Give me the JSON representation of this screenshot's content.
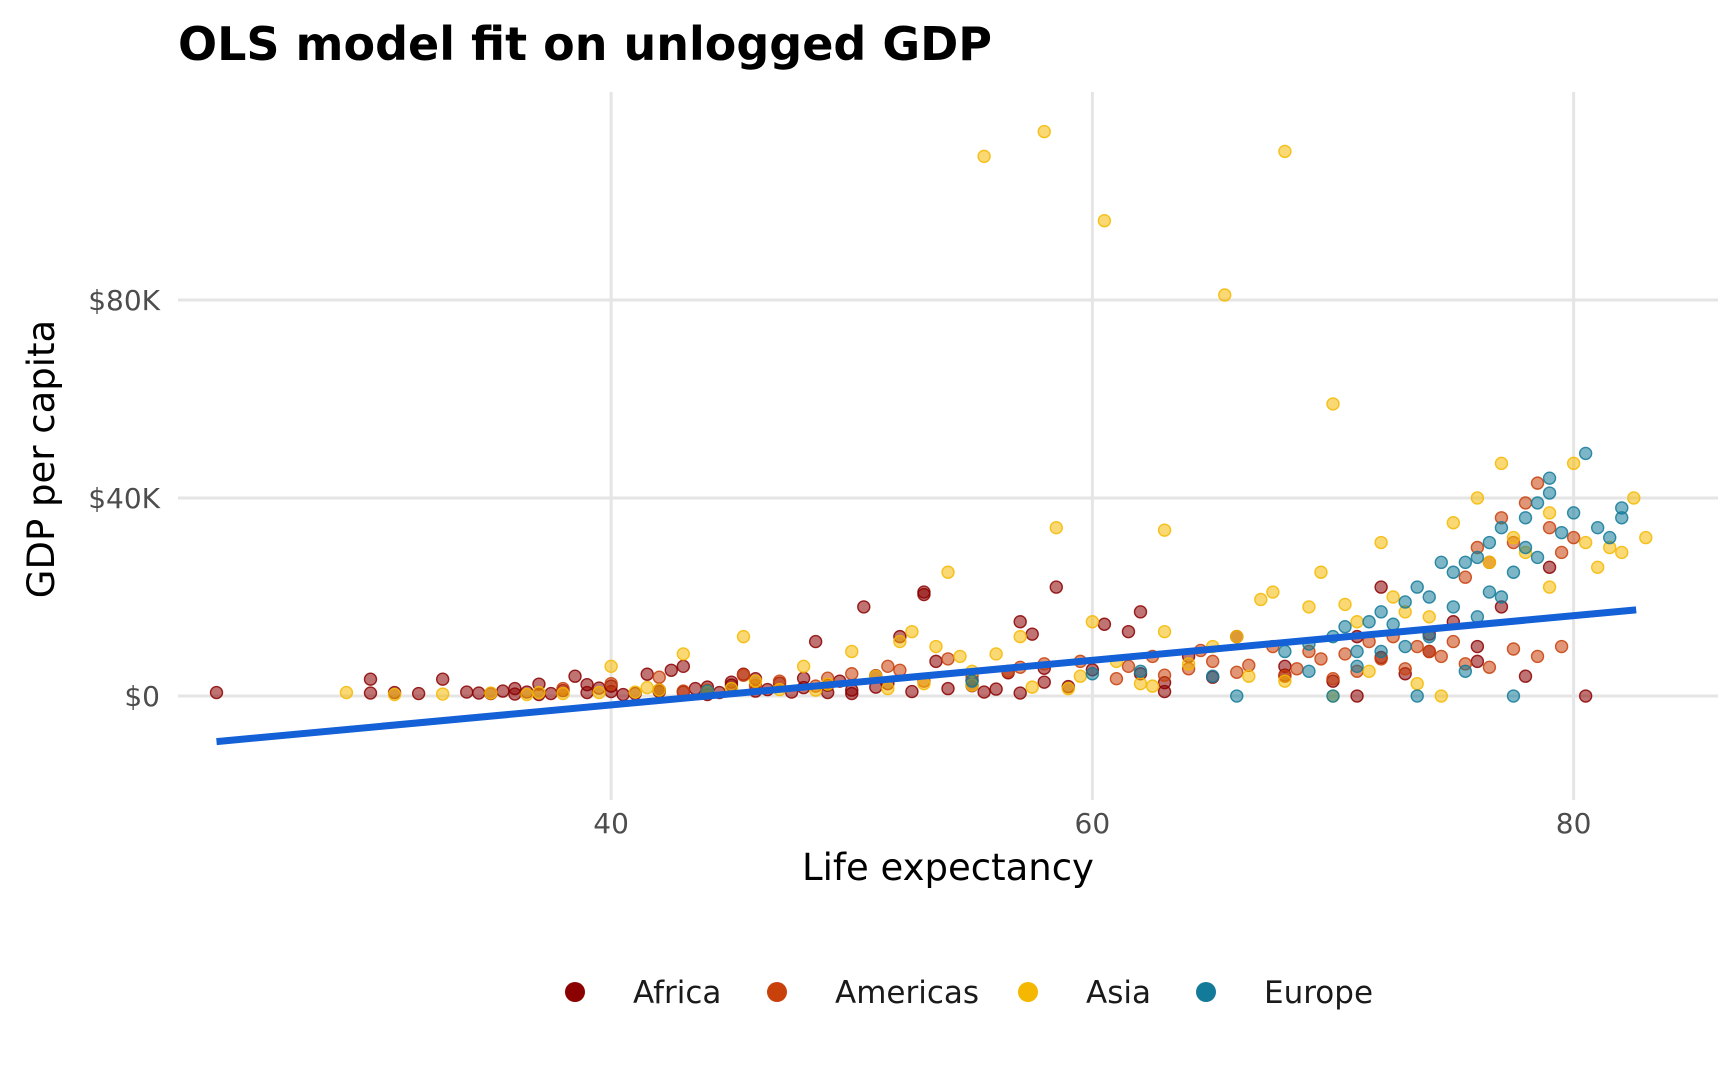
{
  "chart_data": {
    "type": "scatter",
    "title": "OLS model fit on unlogged GDP",
    "xlabel": "Life expectancy",
    "ylabel": "GDP per capita",
    "xlim": [
      22,
      86
    ],
    "ylim": [
      -21000,
      122000
    ],
    "x_ticks": [
      40,
      60,
      80
    ],
    "x_tick_labels": [
      "40",
      "60",
      "80"
    ],
    "y_ticks": [
      0,
      40000,
      80000
    ],
    "y_tick_labels": [
      "$0",
      "$40K",
      "$80K"
    ],
    "grid": true,
    "legend_position": "bottom",
    "legend": [
      "Africa",
      "Americas",
      "Asia",
      "Europe"
    ],
    "colors": {
      "Africa": "#8b0000",
      "Americas": "#c8400a",
      "Asia": "#f5b800",
      "Europe": "#137a99",
      "fit_line": "#1460d6"
    },
    "series": [
      {
        "name": "Africa",
        "points": [
          [
            23.6,
            700
          ],
          [
            30,
            600
          ],
          [
            30,
            3400
          ],
          [
            31,
            700
          ],
          [
            32,
            500
          ],
          [
            33,
            3400
          ],
          [
            34,
            800
          ],
          [
            34.5,
            600
          ],
          [
            35,
            500
          ],
          [
            35.5,
            1000
          ],
          [
            36,
            400
          ],
          [
            36.5,
            800
          ],
          [
            37,
            2400
          ],
          [
            37.5,
            500
          ],
          [
            38,
            1100
          ],
          [
            38.5,
            4000
          ],
          [
            39,
            700
          ],
          [
            39.5,
            1600
          ],
          [
            40,
            900
          ],
          [
            40.5,
            300
          ],
          [
            41,
            500
          ],
          [
            41.5,
            4400
          ],
          [
            42,
            1200
          ],
          [
            42.5,
            5200
          ],
          [
            43,
            800
          ],
          [
            43.5,
            1500
          ],
          [
            44,
            1800
          ],
          [
            44.5,
            700
          ],
          [
            45,
            2200
          ],
          [
            45.5,
            4400
          ],
          [
            46,
            1000
          ],
          [
            46.5,
            1300
          ],
          [
            47,
            2600
          ],
          [
            47.5,
            800
          ],
          [
            48,
            1700
          ],
          [
            48.5,
            11000
          ],
          [
            49,
            700
          ],
          [
            49.5,
            3000
          ],
          [
            50,
            1200
          ],
          [
            50.5,
            18000
          ],
          [
            51,
            4100
          ],
          [
            51.5,
            2500
          ],
          [
            52,
            12000
          ],
          [
            52.5,
            900
          ],
          [
            53,
            21000
          ],
          [
            53,
            20500
          ],
          [
            53.5,
            7000
          ],
          [
            54,
            1500
          ],
          [
            55,
            3200
          ],
          [
            55.5,
            800
          ],
          [
            56,
            1400
          ],
          [
            56.5,
            4700
          ],
          [
            57,
            15000
          ],
          [
            57.5,
            12500
          ],
          [
            58,
            2800
          ],
          [
            58.5,
            22000
          ],
          [
            59,
            1900
          ],
          [
            60,
            5300
          ],
          [
            60.5,
            14500
          ],
          [
            61.5,
            13000
          ],
          [
            62,
            17000
          ],
          [
            63,
            2700
          ],
          [
            64,
            8000
          ],
          [
            66,
            12000
          ],
          [
            68,
            6000
          ],
          [
            70,
            3000
          ],
          [
            71,
            12000
          ],
          [
            72,
            22000
          ],
          [
            73,
            4500
          ],
          [
            74,
            9000
          ],
          [
            75,
            15000
          ],
          [
            76,
            7000
          ],
          [
            77,
            18000
          ],
          [
            79,
            26000
          ],
          [
            80.5,
            0
          ],
          [
            71,
            0
          ],
          [
            40,
            2000
          ],
          [
            43,
            6000
          ],
          [
            46,
            3500
          ],
          [
            49,
            2200
          ],
          [
            36,
            1500
          ],
          [
            39,
            2300
          ],
          [
            42,
            900
          ],
          [
            45,
            2800
          ],
          [
            48,
            3600
          ],
          [
            51,
            1800
          ],
          [
            55,
            2100
          ],
          [
            58,
            5600
          ],
          [
            62,
            4500
          ],
          [
            65,
            3800
          ],
          [
            68,
            4200
          ],
          [
            72,
            7800
          ],
          [
            74,
            12500
          ],
          [
            76,
            10000
          ],
          [
            78,
            4000
          ],
          [
            37,
            300
          ],
          [
            44,
            300
          ],
          [
            50,
            500
          ],
          [
            57,
            600
          ],
          [
            63,
            900
          ]
        ]
      },
      {
        "name": "Americas",
        "points": [
          [
            38,
            1500
          ],
          [
            40,
            2500
          ],
          [
            42,
            3800
          ],
          [
            44,
            1200
          ],
          [
            45.5,
            4200
          ],
          [
            47,
            3000
          ],
          [
            48.5,
            2000
          ],
          [
            50,
            4500
          ],
          [
            51.5,
            6000
          ],
          [
            53,
            3000
          ],
          [
            54,
            7500
          ],
          [
            55,
            4000
          ],
          [
            56.5,
            5000
          ],
          [
            58,
            6500
          ],
          [
            59.5,
            7000
          ],
          [
            61,
            3500
          ],
          [
            62.5,
            8000
          ],
          [
            64,
            5500
          ],
          [
            65,
            7000
          ],
          [
            66.5,
            6200
          ],
          [
            68,
            4000
          ],
          [
            69,
            9000
          ],
          [
            70,
            3500
          ],
          [
            71,
            5000
          ],
          [
            72,
            7500
          ],
          [
            73,
            5500
          ],
          [
            74,
            9000
          ],
          [
            75,
            11000
          ],
          [
            75.5,
            24000
          ],
          [
            76,
            30000
          ],
          [
            76.5,
            27000
          ],
          [
            77,
            36000
          ],
          [
            77.5,
            31000
          ],
          [
            78,
            39000
          ],
          [
            78.5,
            43000
          ],
          [
            79,
            34000
          ],
          [
            79.5,
            29000
          ],
          [
            80,
            32000
          ],
          [
            71.5,
            11000
          ],
          [
            72.5,
            12000
          ],
          [
            73.5,
            10000
          ],
          [
            74.5,
            8000
          ],
          [
            75.5,
            6500
          ],
          [
            76.5,
            5800
          ],
          [
            77.5,
            9500
          ],
          [
            78.5,
            8000
          ],
          [
            79.5,
            10000
          ],
          [
            70.5,
            8500
          ],
          [
            69.5,
            7500
          ],
          [
            68.5,
            5500
          ],
          [
            67.5,
            10000
          ],
          [
            66,
            4800
          ],
          [
            64.5,
            9200
          ],
          [
            63,
            4200
          ],
          [
            61.5,
            6000
          ],
          [
            57,
            5800
          ],
          [
            52,
            5200
          ],
          [
            49,
            3600
          ],
          [
            46,
            2100
          ],
          [
            43,
            1000
          ]
        ]
      },
      {
        "name": "Asia",
        "points": [
          [
            29,
            700
          ],
          [
            31,
            300
          ],
          [
            33,
            400
          ],
          [
            35,
            600
          ],
          [
            36.5,
            300
          ],
          [
            38,
            500
          ],
          [
            39.5,
            700
          ],
          [
            40,
            6000
          ],
          [
            41,
            800
          ],
          [
            42,
            1200
          ],
          [
            43,
            8500
          ],
          [
            44,
            900
          ],
          [
            45.5,
            12000
          ],
          [
            46,
            3000
          ],
          [
            47,
            1300
          ],
          [
            48,
            6000
          ],
          [
            49,
            2400
          ],
          [
            50,
            9000
          ],
          [
            51,
            4000
          ],
          [
            52,
            11000
          ],
          [
            52.5,
            13000
          ],
          [
            53.5,
            10000
          ],
          [
            54,
            25000
          ],
          [
            54.5,
            8000
          ],
          [
            55,
            5000
          ],
          [
            55.5,
            109000
          ],
          [
            56,
            8500
          ],
          [
            57,
            12000
          ],
          [
            58,
            114000
          ],
          [
            58.5,
            34000
          ],
          [
            59,
            1500
          ],
          [
            60,
            15000
          ],
          [
            60.5,
            96000
          ],
          [
            61,
            7000
          ],
          [
            62,
            2500
          ],
          [
            63,
            13000
          ],
          [
            63,
            33500
          ],
          [
            64,
            6500
          ],
          [
            65,
            10000
          ],
          [
            65.5,
            81000
          ],
          [
            66,
            12000
          ],
          [
            67,
            19500
          ],
          [
            67.5,
            21000
          ],
          [
            68,
            110000
          ],
          [
            69,
            18000
          ],
          [
            69.5,
            25000
          ],
          [
            70,
            59000
          ],
          [
            70.5,
            18500
          ],
          [
            71,
            15000
          ],
          [
            72,
            31000
          ],
          [
            72.5,
            20000
          ],
          [
            73,
            17000
          ],
          [
            74,
            16000
          ],
          [
            75,
            35000
          ],
          [
            76,
            40000
          ],
          [
            77,
            47000
          ],
          [
            77.5,
            32000
          ],
          [
            78,
            29000
          ],
          [
            79,
            37000
          ],
          [
            80,
            47000
          ],
          [
            80.5,
            31000
          ],
          [
            81,
            26000
          ],
          [
            81.5,
            30000
          ],
          [
            82,
            29000
          ],
          [
            82.5,
            40000
          ],
          [
            83,
            32000
          ],
          [
            79,
            22000
          ],
          [
            76.5,
            27000
          ],
          [
            71.5,
            5000
          ],
          [
            73.5,
            2500
          ],
          [
            74.5,
            0
          ],
          [
            70,
            0
          ],
          [
            68,
            3000
          ],
          [
            66.5,
            4000
          ],
          [
            62.5,
            2000
          ],
          [
            59.5,
            4000
          ],
          [
            57.5,
            1800
          ],
          [
            55,
            2200
          ],
          [
            53,
            2500
          ],
          [
            51.5,
            1500
          ],
          [
            48.5,
            1200
          ],
          [
            45,
            1500
          ],
          [
            41.5,
            1700
          ],
          [
            37,
            700
          ]
        ]
      },
      {
        "name": "Europe",
        "points": [
          [
            44,
            1000
          ],
          [
            55,
            3000
          ],
          [
            60,
            4500
          ],
          [
            62,
            5000
          ],
          [
            65,
            4000
          ],
          [
            66,
            0
          ],
          [
            68,
            9000
          ],
          [
            69,
            10500
          ],
          [
            70,
            12000
          ],
          [
            70.5,
            14000
          ],
          [
            71,
            9000
          ],
          [
            71.5,
            15000
          ],
          [
            72,
            17000
          ],
          [
            72.5,
            14500
          ],
          [
            73,
            19000
          ],
          [
            73.5,
            22000
          ],
          [
            74,
            20000
          ],
          [
            74.5,
            27000
          ],
          [
            75,
            25000
          ],
          [
            75.5,
            27000
          ],
          [
            76,
            28000
          ],
          [
            76.5,
            31000
          ],
          [
            77,
            34000
          ],
          [
            77.5,
            0
          ],
          [
            78,
            36000
          ],
          [
            78.5,
            39000
          ],
          [
            79,
            41000
          ],
          [
            79,
            44000
          ],
          [
            79.5,
            33000
          ],
          [
            80,
            37000
          ],
          [
            80.5,
            49000
          ],
          [
            81,
            34000
          ],
          [
            81.5,
            32000
          ],
          [
            82,
            36000
          ],
          [
            82,
            38000
          ],
          [
            76.5,
            21000
          ],
          [
            77.5,
            25000
          ],
          [
            78.5,
            28000
          ],
          [
            75,
            18000
          ],
          [
            74,
            12000
          ],
          [
            73,
            10000
          ],
          [
            72,
            9000
          ],
          [
            71,
            6000
          ],
          [
            70,
            0
          ],
          [
            69,
            5000
          ],
          [
            73.5,
            0
          ],
          [
            75.5,
            5000
          ],
          [
            76,
            16000
          ],
          [
            77,
            20000
          ],
          [
            78,
            30000
          ]
        ]
      }
    ],
    "fit_line": {
      "x": [
        23.6,
        82.6
      ],
      "y": [
        -9200,
        17400
      ]
    }
  }
}
